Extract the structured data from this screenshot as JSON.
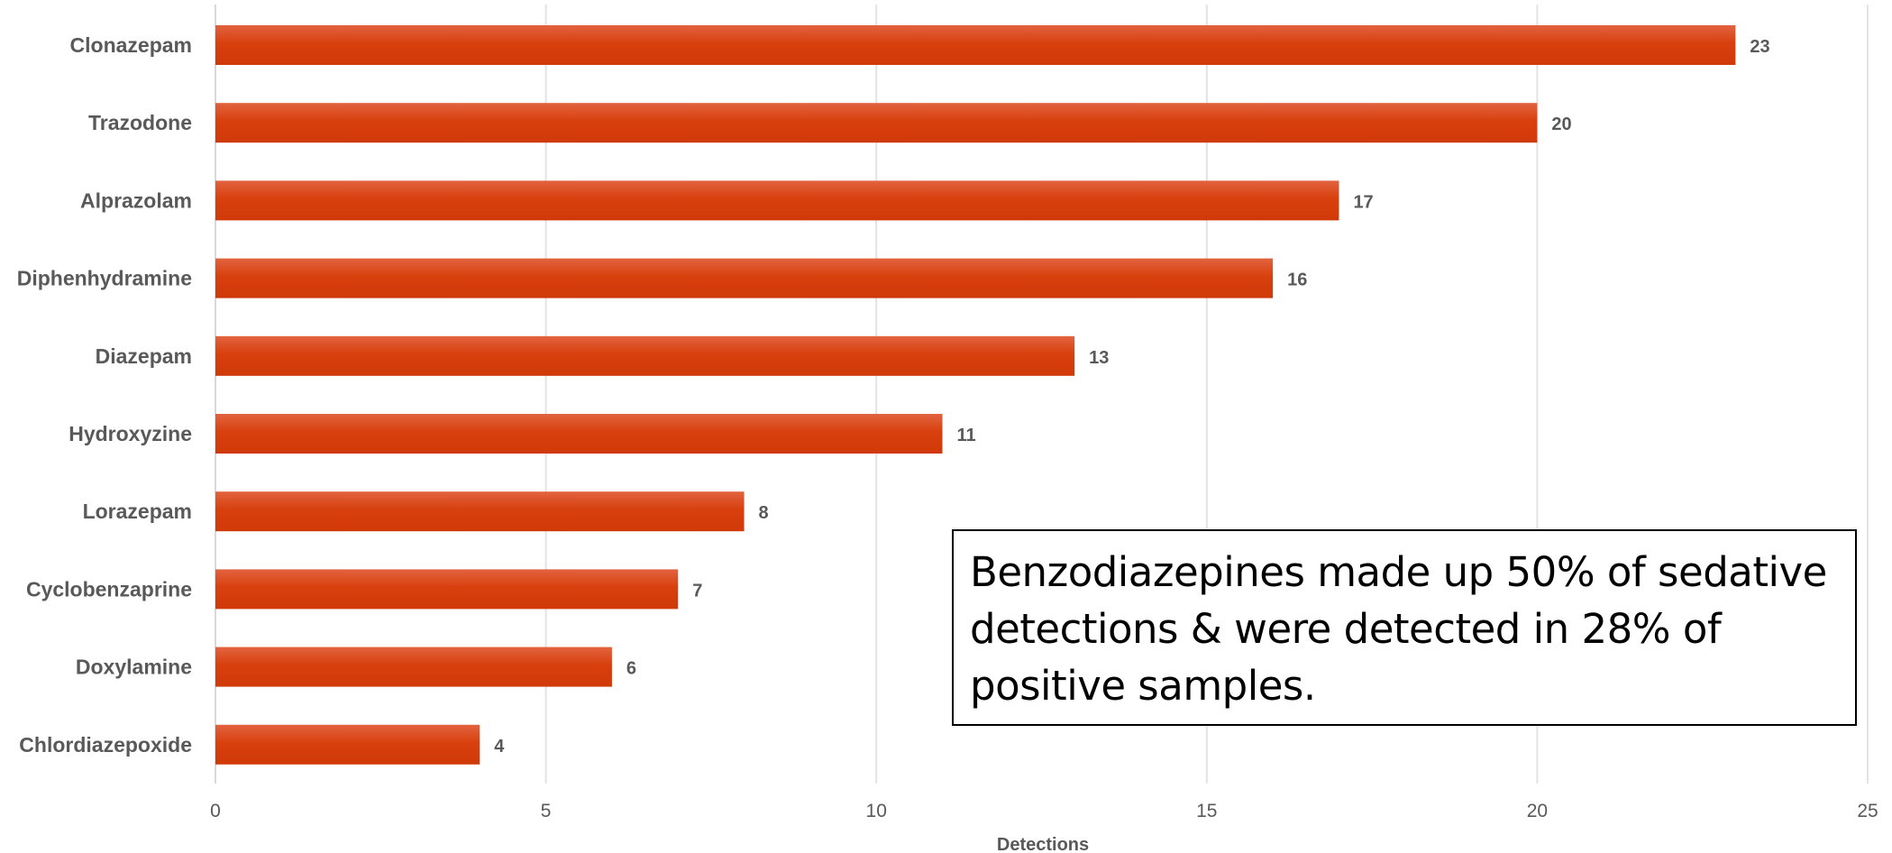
{
  "chart_data": {
    "type": "bar",
    "orientation": "horizontal",
    "categories": [
      "Clonazepam",
      "Trazodone",
      "Alprazolam",
      "Diphenhydramine",
      "Diazepam",
      "Hydroxyzine",
      "Lorazepam",
      "Cyclobenzaprine",
      "Doxylamine",
      "Chlordiazepoxide"
    ],
    "values": [
      23,
      20,
      17,
      16,
      13,
      11,
      8,
      7,
      6,
      4
    ],
    "xlabel": "Detections",
    "ylabel": "",
    "xlim": [
      0,
      25
    ],
    "xticks": [
      0,
      5,
      10,
      15,
      20,
      25
    ],
    "grid": "vertical",
    "legend": "none",
    "data_labels": true,
    "bar_color": "#D8400E",
    "bar_highlight_color": "#E2633F"
  },
  "annotation": {
    "text": "Benzodiazepines made up 50% of sedative detections & were detected in 28% of positive samples."
  }
}
